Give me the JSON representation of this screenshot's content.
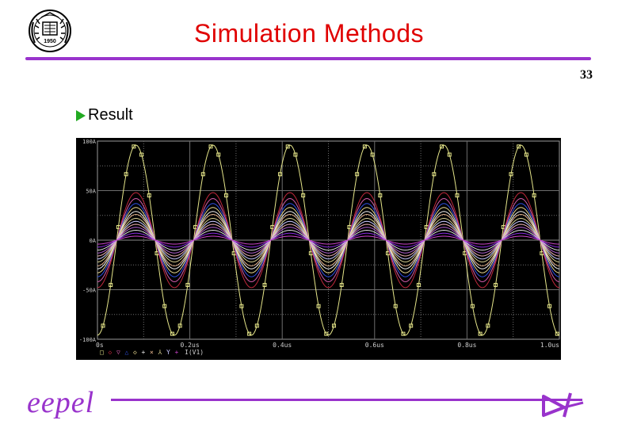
{
  "slide": {
    "title": "Simulation Methods",
    "number": "33",
    "bullet": "Result",
    "footer_brand": "eepel",
    "logo_text": "1950",
    "colors": {
      "title": "#e00000",
      "rule": "#9933cc",
      "bullet": "#22aa22"
    }
  },
  "chart_data": {
    "type": "line",
    "xlabel": "",
    "ylabel": "",
    "x_ticks": [
      "0s",
      "0.2us",
      "0.4us",
      "0.6us",
      "0.8us",
      "1.0us"
    ],
    "y_ticks": [
      "100A",
      "50A",
      "0A",
      "-50A",
      "-100A"
    ],
    "xlim": [
      0,
      1.0
    ],
    "ylim": [
      -100,
      100
    ],
    "x_unit": "us",
    "y_unit": "A",
    "grid": true,
    "legend_text": "I(V1)",
    "legend_markers": [
      "□",
      "◇",
      "▽",
      "△",
      "◇",
      "+",
      "×",
      "⅄",
      "Y",
      "+"
    ],
    "frequency_mhz": 6,
    "series": [
      {
        "amplitude": 96,
        "color": "#e6e68a"
      },
      {
        "amplitude": 48,
        "color": "#c0283c"
      },
      {
        "amplitude": 42,
        "color": "#d05aa8"
      },
      {
        "amplitude": 37,
        "color": "#2e4fe0"
      },
      {
        "amplitude": 33,
        "color": "#e8d890"
      },
      {
        "amplitude": 29,
        "color": "#f0f0f0"
      },
      {
        "amplitude": 26,
        "color": "#e6b48c"
      },
      {
        "amplitude": 22,
        "color": "#d8d090"
      },
      {
        "amplitude": 19,
        "color": "#c8c8ff"
      },
      {
        "amplitude": 16,
        "color": "#f2b4b4"
      },
      {
        "amplitude": 13,
        "color": "#b060d0"
      },
      {
        "amplitude": 10,
        "color": "#e0e0e0"
      },
      {
        "amplitude": 7,
        "color": "#8a2be2"
      },
      {
        "amplitude": 4,
        "color": "#cc44cc"
      }
    ]
  }
}
